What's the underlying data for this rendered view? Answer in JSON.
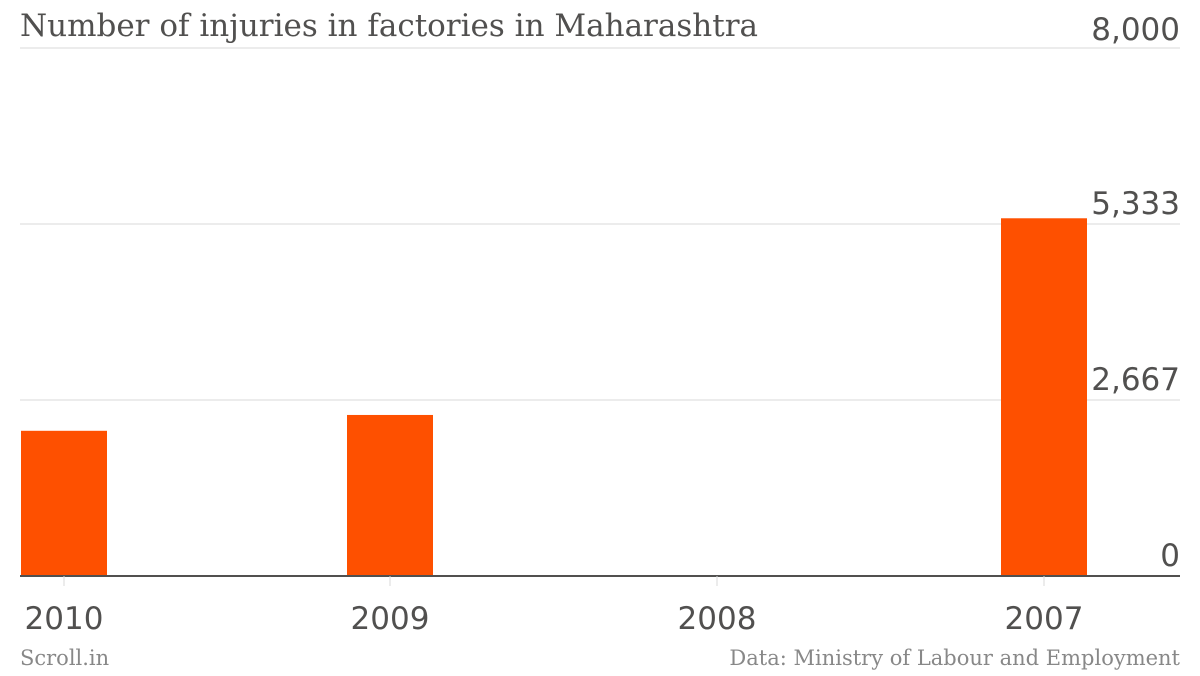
{
  "chart_data": {
    "type": "bar",
    "title": "Number of injuries in factories in Maharashtra",
    "categories": [
      "2010",
      "2009",
      "2008",
      "2007"
    ],
    "values": [
      2200,
      2440,
      0,
      5420
    ],
    "ylim": [
      0,
      8000
    ],
    "yticks": [
      0,
      2667,
      5333,
      8000
    ],
    "ytick_labels": [
      "0",
      "2,667",
      "5,333",
      "8,000"
    ],
    "xlabel": "",
    "ylabel": "",
    "grid": true,
    "axis_side": "right",
    "colors": {
      "bar": "#fe5000",
      "grid": "#d8d8d8",
      "axis": "#51504f",
      "text": "#51504f"
    }
  },
  "footer": {
    "source_brand": "Scroll.in",
    "data_credit": "Data: Ministry of Labour and Employment"
  }
}
